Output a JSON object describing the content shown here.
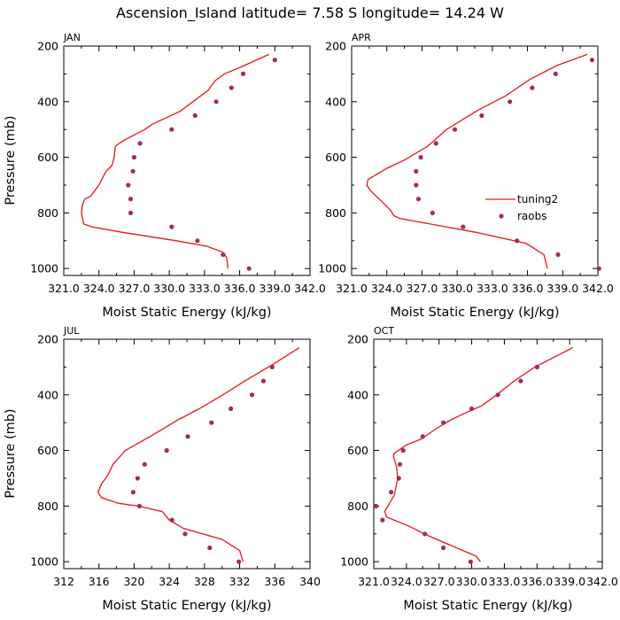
{
  "figure": {
    "title": "Ascension_Island  latitude= 7.58 S longitude= 14.24 W",
    "colors": {
      "line": "#e8141c",
      "dots": "#a52a5a",
      "axes": "#000000"
    }
  },
  "chart_data": [
    {
      "type": "line",
      "panel_title": "JAN",
      "xlabel": "Moist Static Energy (kJ/kg)",
      "ylabel": "Pressure (mb)",
      "xlim": [
        321.0,
        342.0
      ],
      "ylim": [
        1025,
        200
      ],
      "xticks": [
        "321.0",
        "324.0",
        "327.0",
        "330.0",
        "333.0",
        "336.0",
        "339.0",
        "342.0"
      ],
      "xtick_values": [
        321,
        324,
        327,
        330,
        333,
        336,
        339,
        342
      ],
      "yticks": [
        200,
        400,
        600,
        800,
        1000
      ],
      "series": [
        {
          "name": "tuning2",
          "kind": "line",
          "x": [
            338.5,
            336.4,
            334.7,
            333.9,
            333.3,
            330.9,
            328.6,
            327.9,
            326.1,
            325.4,
            325.3,
            325.1,
            324.6,
            324.0,
            323.3,
            322.8,
            322.6,
            322.5,
            322.7,
            323.4,
            326.0,
            330.6,
            333.2,
            334.5,
            334.9,
            335.0
          ],
          "y": [
            230,
            270,
            300,
            325,
            360,
            435,
            480,
            500,
            540,
            560,
            600,
            630,
            650,
            700,
            740,
            750,
            770,
            800,
            840,
            850,
            870,
            900,
            920,
            940,
            960,
            1000
          ]
        },
        {
          "name": "raobs",
          "kind": "points",
          "x": [
            339.0,
            336.3,
            335.3,
            334.0,
            332.2,
            330.2,
            327.5,
            327.0,
            326.9,
            326.5,
            326.7,
            326.7,
            330.2,
            332.4,
            334.6,
            336.8
          ],
          "y": [
            250,
            300,
            350,
            400,
            450,
            500,
            550,
            600,
            650,
            700,
            750,
            800,
            850,
            900,
            950,
            1000
          ]
        }
      ]
    },
    {
      "type": "line",
      "panel_title": "APR",
      "xlabel": "Moist Static Energy (kJ/kg)",
      "ylabel": "Pressure (mb)",
      "xlim": [
        321.0,
        342.0
      ],
      "ylim": [
        1025,
        200
      ],
      "xticks": [
        "321.0",
        "324.0",
        "327.0",
        "330.0",
        "333.0",
        "336.0",
        "339.0",
        "342.0"
      ],
      "xtick_values": [
        321,
        324,
        327,
        330,
        333,
        336,
        339,
        342
      ],
      "yticks": [
        200,
        400,
        600,
        800,
        1000
      ],
      "legend": {
        "position": "right",
        "entries": [
          "tuning2",
          "raobs"
        ]
      },
      "series": [
        {
          "name": "tuning2",
          "kind": "line",
          "x": [
            341.1,
            338.5,
            336.2,
            334.1,
            331.8,
            329.1,
            327.5,
            325.5,
            324.0,
            322.4,
            322.3,
            322.6,
            323.6,
            324.3,
            324.6,
            325.1,
            327.7,
            331.6,
            335.9,
            337.4,
            337.7
          ],
          "y": [
            230,
            270,
            320,
            380,
            430,
            500,
            560,
            610,
            640,
            680,
            700,
            720,
            760,
            790,
            810,
            820,
            840,
            870,
            910,
            950,
            1000
          ]
        },
        {
          "name": "raobs",
          "kind": "points",
          "x": [
            341.5,
            338.4,
            336.4,
            334.5,
            332.1,
            329.8,
            328.2,
            326.9,
            326.5,
            326.5,
            326.7,
            327.9,
            330.5,
            335.1,
            338.6,
            342.1
          ],
          "y": [
            250,
            300,
            350,
            400,
            450,
            500,
            550,
            600,
            650,
            700,
            750,
            800,
            850,
            900,
            950,
            1000
          ]
        }
      ]
    },
    {
      "type": "line",
      "panel_title": "JUL",
      "xlabel": "Moist Static Energy (kJ/kg)",
      "ylabel": "Pressure (mb)",
      "xlim": [
        312,
        340
      ],
      "ylim": [
        1025,
        200
      ],
      "xticks": [
        "312",
        "316",
        "320",
        "324",
        "328",
        "332",
        "336",
        "340"
      ],
      "xtick_values": [
        312,
        316,
        320,
        324,
        328,
        332,
        336,
        340
      ],
      "yticks": [
        200,
        400,
        600,
        800,
        1000
      ],
      "series": [
        {
          "name": "tuning2",
          "kind": "line",
          "x": [
            338.8,
            335.8,
            332.6,
            330.1,
            327.4,
            325.0,
            321.8,
            319.0,
            317.6,
            317.0,
            316.3,
            315.9,
            316.3,
            318.2,
            320.5,
            323.2,
            324.0,
            325.6,
            330.0,
            332.0,
            332.4
          ],
          "y": [
            230,
            290,
            350,
            400,
            450,
            490,
            550,
            600,
            650,
            690,
            720,
            750,
            770,
            790,
            800,
            820,
            850,
            880,
            920,
            960,
            1000
          ]
        },
        {
          "name": "raobs",
          "kind": "points",
          "x": [
            335.7,
            334.7,
            333.4,
            331.0,
            328.8,
            326.1,
            323.7,
            321.2,
            320.4,
            319.9,
            320.6,
            324.3,
            325.8,
            328.6,
            331.9
          ],
          "y": [
            300,
            350,
            400,
            450,
            500,
            550,
            600,
            650,
            700,
            750,
            800,
            850,
            900,
            950,
            1000
          ]
        }
      ]
    },
    {
      "type": "line",
      "panel_title": "OCT",
      "xlabel": "Moist Static Energy (kJ/kg)",
      "ylabel": "Pressure (mb)",
      "xlim": [
        321.0,
        342.0
      ],
      "ylim": [
        1025,
        200
      ],
      "xticks": [
        "321.0",
        "324.0",
        "327.0",
        "330.0",
        "333.0",
        "336.0",
        "339.0",
        "342.0"
      ],
      "xtick_values": [
        321,
        324,
        327,
        330,
        333,
        336,
        339,
        342
      ],
      "yticks": [
        200,
        400,
        600,
        800,
        1000
      ],
      "series": [
        {
          "name": "tuning2",
          "kind": "line",
          "x": [
            339.3,
            337.3,
            335.8,
            333.9,
            332.3,
            330.9,
            329.7,
            328.1,
            326.8,
            325.3,
            324.0,
            322.9,
            322.8,
            323.1,
            323.2,
            322.9,
            322.0,
            322.2,
            324.1,
            326.2,
            328.6,
            330.4,
            330.8
          ],
          "y": [
            230,
            270,
            300,
            350,
            400,
            440,
            460,
            490,
            520,
            560,
            580,
            610,
            620,
            660,
            700,
            760,
            820,
            840,
            870,
            910,
            950,
            980,
            1000
          ]
        },
        {
          "name": "raobs",
          "kind": "points",
          "x": [
            336.0,
            334.5,
            332.4,
            330.0,
            327.4,
            325.5,
            323.7,
            323.4,
            323.3,
            322.6,
            321.2,
            321.8,
            325.7,
            327.4,
            329.9
          ],
          "y": [
            300,
            350,
            400,
            450,
            500,
            550,
            600,
            650,
            700,
            750,
            800,
            850,
            900,
            950,
            1000
          ]
        }
      ]
    }
  ]
}
